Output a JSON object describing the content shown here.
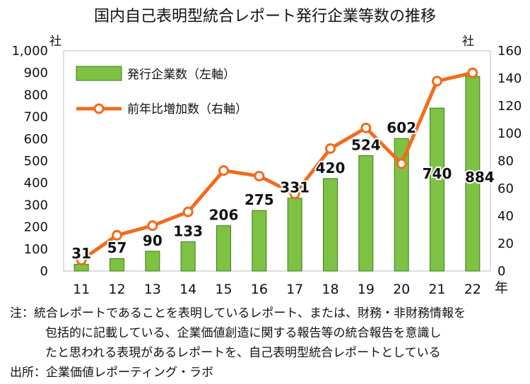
{
  "chart_data": {
    "type": "bar+line",
    "title": "国内自己表明型統合レポート発行企業等数の推移",
    "y_unit_left": "社",
    "y_unit_right": "社",
    "x_unit": "年",
    "categories": [
      "11",
      "12",
      "13",
      "14",
      "15",
      "16",
      "17",
      "18",
      "19",
      "20",
      "21",
      "22"
    ],
    "series": [
      {
        "name": "発行企業数（左軸）",
        "type": "bar",
        "axis": "left",
        "color": "#7DC242",
        "values": [
          31,
          57,
          90,
          133,
          206,
          275,
          331,
          420,
          524,
          602,
          740,
          884
        ],
        "labels": [
          "31",
          "57",
          "90",
          "133",
          "206",
          "275",
          "331",
          "420",
          "524",
          "602",
          "740",
          "884"
        ]
      },
      {
        "name": "前年比増加数（右軸）",
        "type": "line",
        "axis": "right",
        "color": "#F26B1D",
        "values": [
          8,
          26,
          33,
          43,
          73,
          69,
          56,
          89,
          104,
          78,
          138,
          144
        ]
      }
    ],
    "y_left": {
      "min": 0,
      "max": 1000,
      "ticks": [
        "0",
        "100",
        "200",
        "300",
        "400",
        "500",
        "600",
        "700",
        "800",
        "900",
        "1,000"
      ]
    },
    "y_right": {
      "min": 0,
      "max": 160,
      "ticks": [
        "0",
        "20",
        "40",
        "60",
        "80",
        "100",
        "120",
        "140",
        "160"
      ]
    },
    "grid": false,
    "legend_position": "top-left"
  },
  "notes": {
    "line1": "注：統合レポートであることを表明しているレポート、または、財務・非財務情報を",
    "line2": "包括的に記載している、企業価値創造に関する報告等の統合報告を意識し",
    "line3": "たと思われる表現があるレポートを、自己表明型統合レポートとしている",
    "source": "出所：企業価値レポーティング・ラボ"
  }
}
